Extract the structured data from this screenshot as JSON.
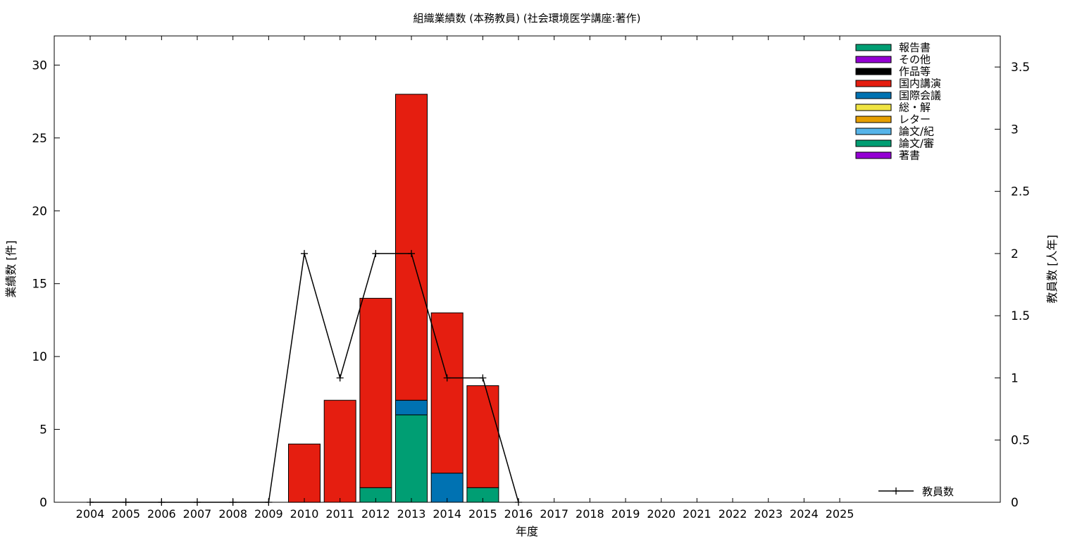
{
  "chart_data": {
    "type": "bar",
    "stacked": true,
    "title": "組織業績数 (本務教員) (社会環境医学講座:著作)",
    "xlabel": "年度",
    "ylabel": "業績数 [件]",
    "y2label": "教員数 [人年]",
    "ylim": [
      0,
      32
    ],
    "y2lim": [
      0,
      3.75
    ],
    "yticks": [
      "0",
      "5",
      "10",
      "15",
      "20",
      "25",
      "30"
    ],
    "y2ticks": [
      "0",
      "0.5",
      "1",
      "1.5",
      "2",
      "2.5",
      "3",
      "3.5"
    ],
    "categories": [
      "2004",
      "2005",
      "2006",
      "2007",
      "2008",
      "2009",
      "2010",
      "2011",
      "2012",
      "2013",
      "2014",
      "2015",
      "2016",
      "2017",
      "2018",
      "2019",
      "2020",
      "2021",
      "2022",
      "2023",
      "2024",
      "2025"
    ],
    "series": [
      {
        "name": "著書",
        "color": "#9400d3",
        "values": [
          0,
          0,
          0,
          0,
          0,
          0,
          0,
          0,
          0,
          0,
          0,
          0,
          0,
          0,
          0,
          0,
          0,
          0,
          0,
          0,
          0,
          0
        ]
      },
      {
        "name": "論文/審",
        "color": "#009e73",
        "values": [
          0,
          0,
          0,
          0,
          0,
          0,
          0,
          0,
          1,
          6,
          0,
          1,
          0,
          0,
          0,
          0,
          0,
          0,
          0,
          0,
          0,
          0
        ]
      },
      {
        "name": "論文/紀",
        "color": "#56b4e9",
        "values": [
          0,
          0,
          0,
          0,
          0,
          0,
          0,
          0,
          0,
          0,
          0,
          0,
          0,
          0,
          0,
          0,
          0,
          0,
          0,
          0,
          0,
          0
        ]
      },
      {
        "name": "レター",
        "color": "#e69f00",
        "values": [
          0,
          0,
          0,
          0,
          0,
          0,
          0,
          0,
          0,
          0,
          0,
          0,
          0,
          0,
          0,
          0,
          0,
          0,
          0,
          0,
          0,
          0
        ]
      },
      {
        "name": "総・解",
        "color": "#f0e442",
        "values": [
          0,
          0,
          0,
          0,
          0,
          0,
          0,
          0,
          0,
          0,
          0,
          0,
          0,
          0,
          0,
          0,
          0,
          0,
          0,
          0,
          0,
          0
        ]
      },
      {
        "name": "国際会議",
        "color": "#0072b2",
        "values": [
          0,
          0,
          0,
          0,
          0,
          0,
          0,
          0,
          0,
          1,
          2,
          0,
          0,
          0,
          0,
          0,
          0,
          0,
          0,
          0,
          0,
          0
        ]
      },
      {
        "name": "国内講演",
        "color": "#e51e10",
        "values": [
          0,
          0,
          0,
          0,
          0,
          0,
          4,
          7,
          13,
          21,
          11,
          7,
          0,
          0,
          0,
          0,
          0,
          0,
          0,
          0,
          0,
          0
        ]
      },
      {
        "name": "作品等",
        "color": "#000000",
        "values": [
          0,
          0,
          0,
          0,
          0,
          0,
          0,
          0,
          0,
          0,
          0,
          0,
          0,
          0,
          0,
          0,
          0,
          0,
          0,
          0,
          0,
          0
        ]
      },
      {
        "name": "その他",
        "color": "#9400d3",
        "values": [
          0,
          0,
          0,
          0,
          0,
          0,
          0,
          0,
          0,
          0,
          0,
          0,
          0,
          0,
          0,
          0,
          0,
          0,
          0,
          0,
          0,
          0
        ]
      },
      {
        "name": "報告書",
        "color": "#009e73",
        "values": [
          0,
          0,
          0,
          0,
          0,
          0,
          0,
          0,
          0,
          0,
          0,
          0,
          0,
          0,
          0,
          0,
          0,
          0,
          0,
          0,
          0,
          0
        ]
      }
    ],
    "legend_order": [
      "報告書",
      "その他",
      "作品等",
      "国内講演",
      "国際会議",
      "総・解",
      "レター",
      "論文/紀",
      "論文/審",
      "著書"
    ],
    "legend_position": "top-right",
    "line_series": {
      "name": "教員数",
      "color": "#000000",
      "axis": "right",
      "values": [
        0,
        0,
        0,
        0,
        0,
        0,
        2,
        1,
        2,
        2,
        1,
        1,
        0,
        null,
        null,
        null,
        null,
        null,
        null,
        null,
        null,
        null
      ]
    },
    "line_legend_position": "bottom-right",
    "grid": false
  }
}
